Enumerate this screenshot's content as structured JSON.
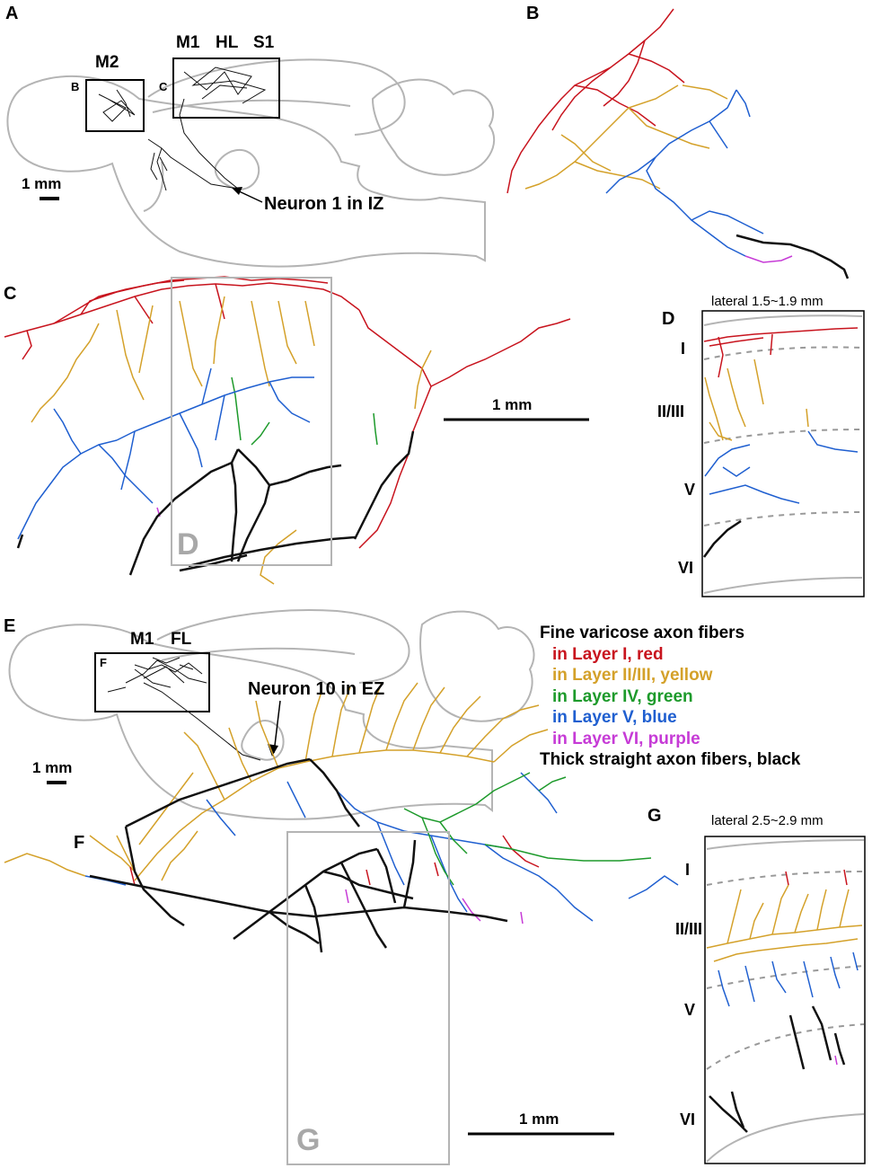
{
  "panels": {
    "A": {
      "letter": "A",
      "regions": [
        "M2",
        "M1",
        "HL",
        "S1"
      ],
      "box_b": "B",
      "box_c": "C",
      "scale": "1 mm",
      "annotation": "Neuron 1 in IZ"
    },
    "B": {
      "letter": "B"
    },
    "C": {
      "letter": "C",
      "scale": "1 mm",
      "box_label": "D"
    },
    "D": {
      "letter": "D",
      "title": "lateral 1.5~1.9 mm",
      "layers": [
        "I",
        "II/III",
        "V",
        "VI"
      ]
    },
    "E": {
      "letter": "E",
      "regions": [
        "M1",
        "FL"
      ],
      "box_f": "F",
      "scale": "1 mm",
      "annotation": "Neuron 10 in EZ"
    },
    "F": {
      "letter": "F",
      "scale": "1 mm",
      "box_label": "G"
    },
    "G": {
      "letter": "G",
      "title": "lateral 2.5~2.9 mm",
      "layers": [
        "I",
        "II/III",
        "V",
        "VI"
      ]
    }
  },
  "legend": {
    "title": "Fine varicose axon fibers",
    "items": [
      {
        "text": "in Layer I, red",
        "color": "#c8141e"
      },
      {
        "text": "in Layer II/III, yellow",
        "color": "#d4a12a"
      },
      {
        "text": "in Layer IV, green",
        "color": "#1d9a2b"
      },
      {
        "text": "in Layer V, blue",
        "color": "#1f5fd0"
      },
      {
        "text": "in Layer VI, purple",
        "color": "#c63bd6"
      }
    ],
    "last": "Thick straight axon fibers, black"
  },
  "colors": {
    "red": "#c8141e",
    "yellow": "#d4a12a",
    "green": "#1d9a2b",
    "blue": "#1f5fd0",
    "purple": "#c63bd6",
    "black": "#111111",
    "outline": "#b4b4b4"
  }
}
